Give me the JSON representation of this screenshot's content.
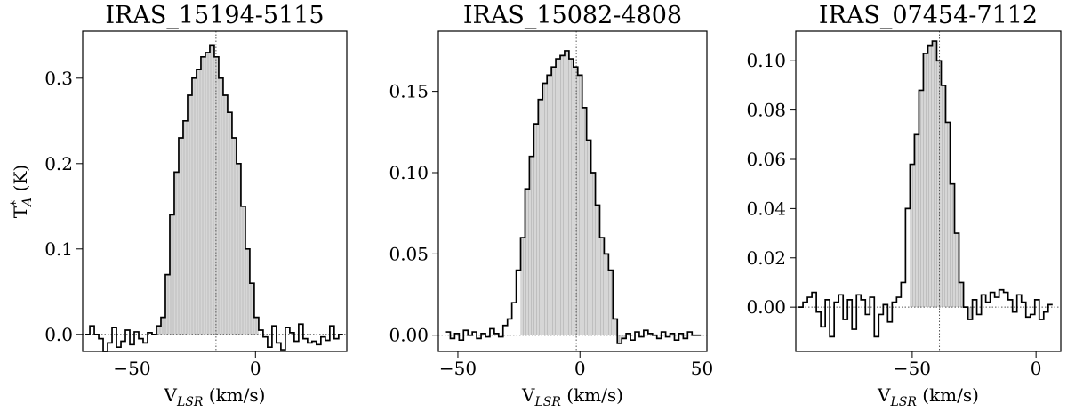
{
  "chart_data": [
    {
      "type": "line",
      "title": "IRAS_15194-5115",
      "xlabel": "V_LSR (km/s)",
      "ylabel": "T*_A (K)",
      "xlim": [
        -70,
        37
      ],
      "ylim": [
        -0.02,
        0.355
      ],
      "xticks": [
        -50,
        0
      ],
      "yticks": [
        0.0,
        0.1,
        0.2,
        0.3
      ],
      "ytick_labels": [
        "0.0",
        "0.1",
        "0.2",
        "0.3"
      ],
      "vline": -16,
      "hline": 0,
      "x": [
        -68,
        -66.2,
        -64.4,
        -62.6,
        -60.8,
        -59,
        -57.2,
        -55.4,
        -53.6,
        -51.8,
        -50,
        -48.2,
        -46.4,
        -44.6,
        -42.8,
        -41,
        -39.2,
        -37.4,
        -35.6,
        -33.8,
        -32,
        -30.2,
        -28.4,
        -26.6,
        -24.8,
        -23,
        -21.2,
        -19.4,
        -17.6,
        -15.8,
        -14,
        -12.2,
        -10.4,
        -8.6,
        -6.8,
        -5,
        -3.2,
        -1.4,
        0.4,
        2.2,
        4,
        5.8,
        7.6,
        9.4,
        11.2,
        13,
        14.8,
        16.6,
        18.4,
        20.2,
        22,
        23.8,
        25.6,
        27.4,
        29.2,
        31,
        32.8,
        34.6
      ],
      "values": [
        0,
        0.01,
        0,
        -0.005,
        -0.02,
        -0.01,
        0.008,
        -0.015,
        -0.008,
        0.005,
        -0.012,
        0.003,
        -0.005,
        -0.01,
        0.002,
        0,
        0.01,
        0.02,
        0.07,
        0.14,
        0.19,
        0.23,
        0.25,
        0.28,
        0.3,
        0.31,
        0.325,
        0.33,
        0.338,
        0.325,
        0.3,
        0.28,
        0.26,
        0.23,
        0.2,
        0.15,
        0.1,
        0.06,
        0.02,
        0.005,
        -0.003,
        -0.015,
        0.01,
        -0.01,
        -0.018,
        0.008,
        0.002,
        -0.008,
        0.012,
        -0.005,
        -0.01,
        -0.008,
        -0.012,
        -0.003,
        -0.007,
        0.01,
        -0.005,
        0
      ],
      "fill_range": [
        -41.9,
        1.3
      ]
    },
    {
      "type": "line",
      "title": "IRAS_15082-4808",
      "xlabel": "V_LSR (km/s)",
      "ylabel": "",
      "xlim": [
        -58,
        52
      ],
      "ylim": [
        -0.01,
        0.187
      ],
      "xticks": [
        -50,
        0,
        50
      ],
      "yticks": [
        0.0,
        0.05,
        0.1,
        0.15
      ],
      "ytick_labels": [
        "0.00",
        "0.05",
        "0.10",
        "0.15"
      ],
      "vline": -1.5,
      "hline": 0,
      "x": [
        -54,
        -52.2,
        -50.4,
        -48.6,
        -46.8,
        -45,
        -43.2,
        -41.4,
        -39.6,
        -37.8,
        -36,
        -34.2,
        -32.4,
        -30.6,
        -28.8,
        -27,
        -25.2,
        -23.4,
        -21.6,
        -19.8,
        -18,
        -16.2,
        -14.4,
        -12.6,
        -10.8,
        -9,
        -7.2,
        -5.4,
        -3.6,
        -1.8,
        0,
        1.8,
        3.6,
        5.4,
        7.2,
        9,
        10.8,
        12.6,
        14.4,
        16.2,
        18,
        19.8,
        21.6,
        23.4,
        25.2,
        27,
        28.8,
        30.6,
        32.4,
        34.2,
        36,
        37.8,
        39.6,
        41.4,
        43.2,
        45,
        46.8,
        48.6
      ],
      "values": [
        0.002,
        -0.002,
        0.001,
        -0.003,
        0.003,
        0,
        0.002,
        -0.002,
        0.001,
        -0.001,
        0.004,
        0.001,
        -0.001,
        0.006,
        0.01,
        0.02,
        0.04,
        0.06,
        0.09,
        0.11,
        0.13,
        0.145,
        0.155,
        0.16,
        0.165,
        0.17,
        0.172,
        0.175,
        0.17,
        0.165,
        0.16,
        0.14,
        0.12,
        0.1,
        0.08,
        0.06,
        0.05,
        0.04,
        0.01,
        -0.005,
        -0.002,
        0.001,
        -0.003,
        0.002,
        -0.001,
        0.003,
        0.001,
        0,
        -0.002,
        0.002,
        -0.001,
        0.001,
        -0.003,
        0.001,
        -0.002,
        0.002,
        0,
        0
      ],
      "fill_range": [
        -24.3,
        19.2
      ]
    },
    {
      "type": "line",
      "title": "IRAS_07454-7112",
      "xlabel": "V_LSR (km/s)",
      "ylabel": "",
      "xlim": [
        -97,
        10
      ],
      "ylim": [
        -0.018,
        0.112
      ],
      "xticks": [
        -50,
        0
      ],
      "yticks": [
        0.0,
        0.02,
        0.04,
        0.06,
        0.08,
        0.1
      ],
      "ytick_labels": [
        "0.00",
        "0.02",
        "0.04",
        "0.06",
        "0.08",
        "0.10"
      ],
      "vline": -39,
      "hline": 0,
      "x": [
        -95,
        -93.2,
        -91.4,
        -89.6,
        -87.8,
        -86,
        -84.2,
        -82.4,
        -80.6,
        -78.8,
        -77,
        -75.2,
        -73.4,
        -71.6,
        -69.8,
        -68,
        -66.2,
        -64.4,
        -62.6,
        -60.8,
        -59,
        -57.2,
        -55.4,
        -53.6,
        -51.8,
        -50,
        -48.2,
        -46.4,
        -44.6,
        -42.8,
        -41,
        -39.2,
        -37.4,
        -35.6,
        -33.8,
        -32,
        -30.2,
        -28.4,
        -26.6,
        -24.8,
        -23,
        -21.2,
        -19.4,
        -17.6,
        -15.8,
        -14,
        -12.2,
        -10.4,
        -8.6,
        -6.8,
        -5,
        -3.2,
        -1.4,
        0.4,
        2.2,
        4,
        5.8
      ],
      "values": [
        0,
        0.002,
        0.004,
        0.006,
        -0.002,
        -0.008,
        0.003,
        -0.012,
        0.002,
        0.005,
        -0.005,
        0.003,
        -0.009,
        0.005,
        0.003,
        -0.003,
        0.004,
        -0.012,
        -0.003,
        0.001,
        -0.006,
        0.002,
        0.004,
        0.01,
        0.04,
        0.058,
        0.07,
        0.088,
        0.103,
        0.106,
        0.108,
        0.1,
        0.09,
        0.075,
        0.05,
        0.03,
        0.01,
        0,
        -0.005,
        0.003,
        -0.003,
        0.005,
        0.002,
        0.006,
        0.004,
        0.007,
        0.006,
        0.003,
        -0.002,
        0.005,
        0.002,
        -0.004,
        -0.003,
        0.003,
        -0.005,
        -0.002,
        0.001
      ],
      "fill_range": [
        -50.9,
        -25.7
      ]
    }
  ]
}
